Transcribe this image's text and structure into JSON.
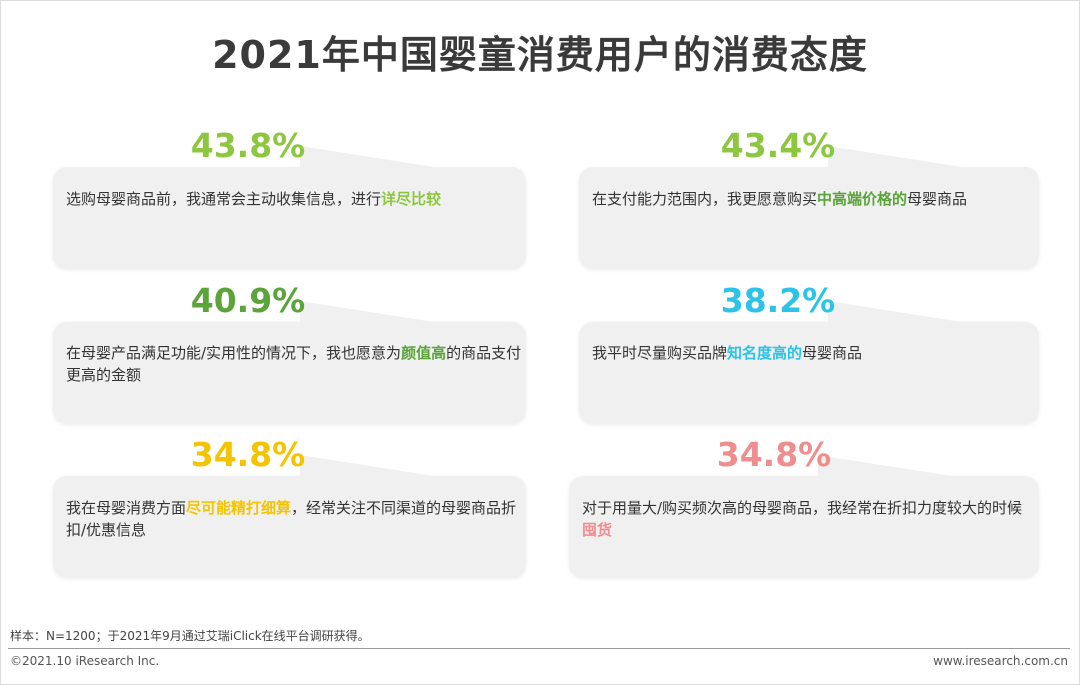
{
  "title": "2021年中国婴童消费用户的消费态度",
  "colors": {
    "green": "#8dc63f",
    "darkgreen": "#5aa43a",
    "cyan": "#2bc3e8",
    "yellow": "#f5c400",
    "pink": "#ef8e8e"
  },
  "cards": [
    {
      "percent": "43.8%",
      "pre": "选购母婴商品前，我通常会主动收集信息，进行",
      "highlight": "详尽比较",
      "post": ""
    },
    {
      "percent": "43.4%",
      "pre": "在支付能力范围内，我更愿意购买",
      "highlight": "中高端价格的",
      "post": "母婴商品"
    },
    {
      "percent": "40.9%",
      "pre": "在母婴产品满足功能/实用性的情况下，我也愿意为",
      "highlight": "颜值高",
      "post": "的商品支付更高的金额"
    },
    {
      "percent": "38.2%",
      "pre": "我平时尽量购买品牌",
      "highlight": "知名度高的",
      "post": "母婴商品"
    },
    {
      "percent": "34.8%",
      "pre": "我在母婴消费方面",
      "highlight": "尽可能精打细算",
      "post": "，经常关注不同渠道的母婴商品折扣/优惠信息"
    },
    {
      "percent": "34.8%",
      "pre": "对于用量大/购买频次高的母婴商品，我经常在折扣力度较大的时候",
      "highlight": "囤货",
      "post": ""
    }
  ],
  "footer": {
    "note": "样本：N=1200；于2021年9月通过艾瑞iClick在线平台调研获得。",
    "copyright": "©2021.10 iResearch Inc.",
    "website": "www.iresearch.com.cn"
  }
}
